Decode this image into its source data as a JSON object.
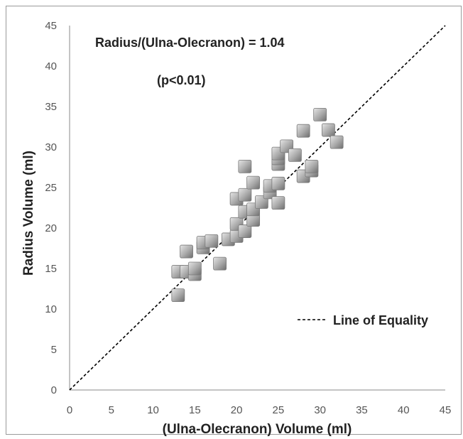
{
  "chart_data": {
    "type": "scatter",
    "title": "",
    "xlabel": "(Ulna-Olecranon) Volume (ml)",
    "ylabel": "Radius Volume (ml)",
    "xlim": [
      0,
      45
    ],
    "ylim": [
      0,
      45
    ],
    "x_ticks": [
      "0",
      "5",
      "10",
      "15",
      "20",
      "25",
      "30",
      "35",
      "40",
      "45"
    ],
    "y_ticks": [
      "0",
      "5",
      "10",
      "15",
      "20",
      "25",
      "30",
      "35",
      "40",
      "45"
    ],
    "grid": false,
    "annotations": {
      "ratio": "Radius/(Ulna-Olecranon) = 1.04",
      "pvalue": "(p<0.01)"
    },
    "legend": {
      "placement": "right",
      "entries": [
        "Line of Equality"
      ]
    },
    "reference_line": {
      "name": "Line of Equality",
      "points": [
        [
          0,
          0
        ],
        [
          45,
          45
        ]
      ],
      "style": "dashed",
      "color": "#000000"
    },
    "marker": {
      "shape": "square",
      "color": "#a8a8a8"
    },
    "series": [
      {
        "points": [
          [
            13,
            11.7
          ],
          [
            13,
            14.6
          ],
          [
            14,
            14.6
          ],
          [
            14,
            17.1
          ],
          [
            15,
            14.3
          ],
          [
            15,
            15.0
          ],
          [
            16,
            17.6
          ],
          [
            16,
            18.2
          ],
          [
            17,
            18.4
          ],
          [
            18,
            15.6
          ],
          [
            19,
            18.6
          ],
          [
            20,
            19.0
          ],
          [
            20,
            20.5
          ],
          [
            20,
            23.6
          ],
          [
            21,
            19.6
          ],
          [
            21,
            22.0
          ],
          [
            21,
            24.1
          ],
          [
            21,
            27.6
          ],
          [
            22,
            21.0
          ],
          [
            22,
            22.3
          ],
          [
            22,
            25.6
          ],
          [
            23,
            23.2
          ],
          [
            24,
            24.4
          ],
          [
            24,
            25.2
          ],
          [
            25,
            23.1
          ],
          [
            25,
            25.5
          ],
          [
            25,
            27.9
          ],
          [
            25,
            28.6
          ],
          [
            25,
            29.2
          ],
          [
            26,
            30.1
          ],
          [
            27,
            29.0
          ],
          [
            28,
            26.4
          ],
          [
            28,
            32.0
          ],
          [
            29,
            27.1
          ],
          [
            29,
            27.6
          ],
          [
            30,
            34.0
          ],
          [
            31,
            32.1
          ],
          [
            32,
            30.6
          ]
        ]
      }
    ]
  }
}
